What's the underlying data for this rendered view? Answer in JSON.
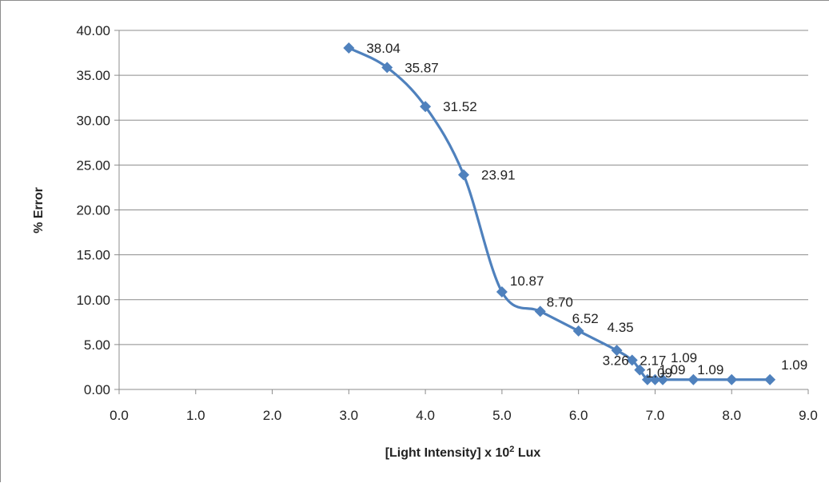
{
  "chart_data": {
    "type": "line",
    "xlabel_main": "[Light Intensity] x 10",
    "xlabel_sup": "2",
    "xlabel_unit": " Lux",
    "ylabel": "% Error",
    "xlim": [
      0,
      9
    ],
    "ylim": [
      0,
      40
    ],
    "x_ticks": [
      "0.0",
      "1.0",
      "2.0",
      "3.0",
      "4.0",
      "5.0",
      "6.0",
      "7.0",
      "8.0",
      "9.0"
    ],
    "y_ticks": [
      "0.00",
      "5.00",
      "10.00",
      "15.00",
      "20.00",
      "25.00",
      "30.00",
      "35.00",
      "40.00"
    ],
    "grid": "horizontal",
    "legend": "none",
    "series": [
      {
        "color": "#4f81bd",
        "marker": "diamond",
        "smooth": true,
        "points": [
          {
            "x": 3.0,
            "y": 38.04,
            "label": "38.04"
          },
          {
            "x": 3.5,
            "y": 35.87,
            "label": "35.87"
          },
          {
            "x": 4.0,
            "y": 31.52,
            "label": "31.52"
          },
          {
            "x": 4.5,
            "y": 23.91,
            "label": "23.91"
          },
          {
            "x": 5.0,
            "y": 10.87,
            "label": "10.87"
          },
          {
            "x": 5.5,
            "y": 8.7,
            "label": "8.70"
          },
          {
            "x": 6.0,
            "y": 6.52,
            "label": "6.52"
          },
          {
            "x": 6.5,
            "y": 4.35,
            "label": "4.35"
          },
          {
            "x": 6.7,
            "y": 3.26,
            "label": "3.26"
          },
          {
            "x": 6.8,
            "y": 2.17,
            "label": "2.17"
          },
          {
            "x": 6.9,
            "y": 1.09,
            "label": "1.09"
          },
          {
            "x": 7.0,
            "y": 1.09,
            "label": ""
          },
          {
            "x": 7.1,
            "y": 1.09,
            "label": "1.09"
          },
          {
            "x": 7.5,
            "y": 1.09,
            "label": "1.09"
          },
          {
            "x": 8.0,
            "y": 1.09,
            "label": "1.09"
          },
          {
            "x": 8.5,
            "y": 1.09,
            "label": "1.09"
          }
        ]
      }
    ]
  }
}
